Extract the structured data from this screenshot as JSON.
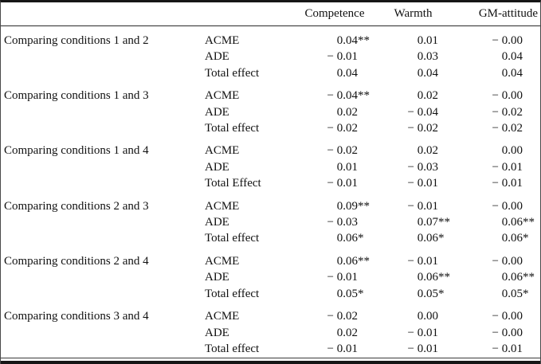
{
  "table": {
    "columns": {
      "comparison": "",
      "effect": "",
      "competence": "Competence",
      "warmth": "Warmth",
      "gm_attitude": "GM-attitude"
    },
    "groups": [
      {
        "label": "Comparing conditions 1 and 2",
        "rows": [
          {
            "effect": "ACME",
            "values": [
              "0.04**",
              "0.01",
              "− 0.00"
            ]
          },
          {
            "effect": "ADE",
            "values": [
              "− 0.01",
              "0.03",
              "0.04"
            ]
          },
          {
            "effect": "Total effect",
            "values": [
              "0.04",
              "0.04",
              "0.04"
            ]
          }
        ]
      },
      {
        "label": "Comparing conditions 1 and 3",
        "rows": [
          {
            "effect": "ACME",
            "values": [
              "− 0.04**",
              "0.02",
              "− 0.00"
            ]
          },
          {
            "effect": "ADE",
            "values": [
              "0.02",
              "− 0.04",
              "− 0.02"
            ]
          },
          {
            "effect": "Total effect",
            "values": [
              "− 0.02",
              "− 0.02",
              "− 0.02"
            ]
          }
        ]
      },
      {
        "label": "Comparing conditions 1 and 4",
        "rows": [
          {
            "effect": "ACME",
            "values": [
              "− 0.02",
              "0.02",
              "0.00"
            ]
          },
          {
            "effect": "ADE",
            "values": [
              "0.01",
              "− 0.03",
              "− 0.01"
            ]
          },
          {
            "effect": "Total Effect",
            "values": [
              "− 0.01",
              "− 0.01",
              "− 0.01"
            ]
          }
        ]
      },
      {
        "label": "Comparing conditions 2 and 3",
        "rows": [
          {
            "effect": "ACME",
            "values": [
              "0.09**",
              "− 0.01",
              "− 0.00"
            ]
          },
          {
            "effect": "ADE",
            "values": [
              "− 0.03",
              "0.07**",
              "0.06**"
            ]
          },
          {
            "effect": "Total effect",
            "values": [
              "0.06*",
              "0.06*",
              "0.06*"
            ]
          }
        ]
      },
      {
        "label": "Comparing conditions 2 and 4",
        "rows": [
          {
            "effect": "ACME",
            "values": [
              "0.06**",
              "− 0.01",
              "− 0.00"
            ]
          },
          {
            "effect": "ADE",
            "values": [
              "− 0.01",
              "0.06**",
              "0.06**"
            ]
          },
          {
            "effect": "Total effect",
            "values": [
              "0.05*",
              "0.05*",
              "0.05*"
            ]
          }
        ]
      },
      {
        "label": "Comparing conditions 3 and 4",
        "rows": [
          {
            "effect": "ACME",
            "values": [
              "− 0.02",
              "0.00",
              "− 0.00"
            ]
          },
          {
            "effect": "ADE",
            "values": [
              "0.02",
              "− 0.01",
              "− 0.00"
            ]
          },
          {
            "effect": "Total effect",
            "values": [
              "− 0.01",
              "− 0.01",
              "− 0.01"
            ]
          }
        ]
      }
    ],
    "colors": {
      "text": "#111111",
      "rule_thick": "#161616",
      "rule_thin": "#3a3a3a",
      "background": "#ffffff"
    }
  }
}
